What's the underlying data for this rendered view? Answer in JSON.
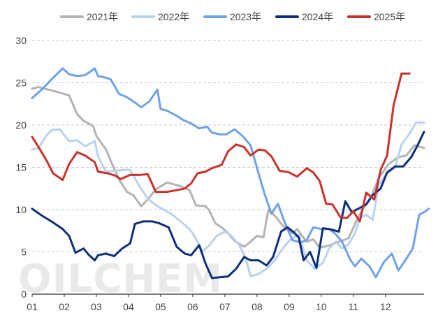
{
  "chart_data": {
    "type": "line",
    "watermark": "OILCHEM",
    "x_ticks": [
      "01",
      "02",
      "03",
      "04",
      "05",
      "06",
      "07",
      "08",
      "09",
      "10",
      "11",
      "12"
    ],
    "xlim": [
      1,
      13.2
    ],
    "ylim": [
      0,
      30
    ],
    "y_ticks": [
      "0",
      "5",
      "10",
      "15",
      "20",
      "25",
      "30"
    ],
    "grid": "horizontal dashed",
    "legend_position": "top",
    "series": [
      {
        "name": "2021年",
        "color": "#b3b3b3",
        "points": [
          [
            1.0,
            24.3
          ],
          [
            1.2,
            24.5
          ],
          [
            1.5,
            24.2
          ],
          [
            1.8,
            23.9
          ],
          [
            2.15,
            23.5
          ],
          [
            2.4,
            21.3
          ],
          [
            2.6,
            20.5
          ],
          [
            2.9,
            19.9
          ],
          [
            3.0,
            18.7
          ],
          [
            3.3,
            17.1
          ],
          [
            3.5,
            15.3
          ],
          [
            3.7,
            13.6
          ],
          [
            3.95,
            12.1
          ],
          [
            4.15,
            11.7
          ],
          [
            4.4,
            10.4
          ],
          [
            4.6,
            11.2
          ],
          [
            4.85,
            12.4
          ],
          [
            5.2,
            13.2
          ],
          [
            5.6,
            12.8
          ],
          [
            5.9,
            12.3
          ],
          [
            6.1,
            10.5
          ],
          [
            6.4,
            10.4
          ],
          [
            6.5,
            10.0
          ],
          [
            6.7,
            8.4
          ],
          [
            6.9,
            7.9
          ],
          [
            7.1,
            7.2
          ],
          [
            7.3,
            6.3
          ],
          [
            7.6,
            5.6
          ],
          [
            7.8,
            6.2
          ],
          [
            8.0,
            6.9
          ],
          [
            8.2,
            6.7
          ],
          [
            8.35,
            9.9
          ],
          [
            8.55,
            9.3
          ],
          [
            8.8,
            8.1
          ],
          [
            9.1,
            7.2
          ],
          [
            9.25,
            7.7
          ],
          [
            9.4,
            6.9
          ],
          [
            9.55,
            6.2
          ],
          [
            9.75,
            6.5
          ],
          [
            9.95,
            5.5
          ],
          [
            10.2,
            5.7
          ],
          [
            10.55,
            6.2
          ],
          [
            10.85,
            6.6
          ],
          [
            11.1,
            8.7
          ],
          [
            11.3,
            10.1
          ],
          [
            11.55,
            11.5
          ],
          [
            11.8,
            13.8
          ],
          [
            12.1,
            15.4
          ],
          [
            12.4,
            16.2
          ],
          [
            12.65,
            16.4
          ],
          [
            12.9,
            17.6
          ],
          [
            13.2,
            17.3
          ]
        ]
      },
      {
        "name": "2022年",
        "color": "#b8d2f2",
        "points": [
          [
            1.0,
            17.1
          ],
          [
            1.2,
            17.3
          ],
          [
            1.45,
            18.8
          ],
          [
            1.6,
            19.4
          ],
          [
            1.85,
            19.5
          ],
          [
            2.15,
            18.1
          ],
          [
            2.4,
            18.2
          ],
          [
            2.65,
            17.5
          ],
          [
            2.95,
            18.1
          ],
          [
            3.05,
            16.3
          ],
          [
            3.3,
            14.5
          ],
          [
            3.6,
            14.6
          ],
          [
            3.85,
            14.7
          ],
          [
            4.05,
            14.7
          ],
          [
            4.35,
            12.7
          ],
          [
            4.6,
            11.3
          ],
          [
            4.9,
            10.4
          ],
          [
            5.1,
            10.0
          ],
          [
            5.4,
            9.3
          ],
          [
            5.65,
            8.5
          ],
          [
            5.9,
            7.7
          ],
          [
            6.05,
            6.9
          ],
          [
            6.3,
            5.1
          ],
          [
            6.5,
            5.7
          ],
          [
            6.75,
            6.9
          ],
          [
            7.0,
            7.4
          ],
          [
            7.2,
            6.9
          ],
          [
            7.45,
            5.8
          ],
          [
            7.65,
            4.2
          ],
          [
            7.8,
            2.1
          ],
          [
            8.05,
            2.4
          ],
          [
            8.3,
            3.0
          ],
          [
            8.55,
            4.0
          ],
          [
            8.8,
            5.4
          ],
          [
            9.05,
            6.5
          ],
          [
            9.3,
            7.0
          ],
          [
            9.55,
            4.0
          ],
          [
            9.8,
            3.0
          ],
          [
            10.05,
            3.7
          ],
          [
            10.25,
            5.4
          ],
          [
            10.45,
            6.2
          ],
          [
            10.65,
            5.4
          ],
          [
            10.85,
            5.9
          ],
          [
            11.05,
            7.2
          ],
          [
            11.2,
            9.0
          ],
          [
            11.4,
            9.4
          ],
          [
            11.6,
            8.8
          ],
          [
            11.8,
            13.0
          ],
          [
            12.05,
            14.3
          ],
          [
            12.3,
            15.0
          ],
          [
            12.5,
            17.7
          ],
          [
            12.75,
            19.0
          ],
          [
            12.95,
            20.3
          ],
          [
            13.2,
            20.3
          ]
        ]
      },
      {
        "name": "2023年",
        "color": "#6fa2e6",
        "points": [
          [
            1.0,
            23.2
          ],
          [
            1.3,
            24.2
          ],
          [
            1.6,
            25.4
          ],
          [
            1.95,
            26.7
          ],
          [
            2.15,
            26.0
          ],
          [
            2.4,
            25.8
          ],
          [
            2.65,
            25.9
          ],
          [
            2.95,
            26.7
          ],
          [
            3.05,
            25.8
          ],
          [
            3.3,
            25.6
          ],
          [
            3.45,
            25.4
          ],
          [
            3.7,
            23.7
          ],
          [
            3.95,
            23.3
          ],
          [
            4.15,
            22.8
          ],
          [
            4.4,
            22.1
          ],
          [
            4.65,
            22.8
          ],
          [
            4.9,
            24.2
          ],
          [
            5.0,
            21.9
          ],
          [
            5.2,
            21.7
          ],
          [
            5.45,
            21.2
          ],
          [
            5.7,
            20.6
          ],
          [
            5.95,
            20.2
          ],
          [
            6.2,
            19.6
          ],
          [
            6.45,
            19.8
          ],
          [
            6.6,
            19.1
          ],
          [
            6.85,
            18.9
          ],
          [
            7.05,
            18.9
          ],
          [
            7.3,
            19.5
          ],
          [
            7.55,
            18.7
          ],
          [
            7.8,
            17.6
          ],
          [
            8.1,
            13.6
          ],
          [
            8.25,
            11.7
          ],
          [
            8.45,
            9.5
          ],
          [
            8.65,
            10.7
          ],
          [
            8.85,
            8.6
          ],
          [
            9.1,
            6.4
          ],
          [
            9.35,
            6.1
          ],
          [
            9.55,
            6.4
          ],
          [
            9.75,
            7.9
          ],
          [
            10.0,
            7.7
          ],
          [
            10.25,
            7.7
          ],
          [
            10.45,
            7.1
          ],
          [
            10.65,
            6.2
          ],
          [
            10.9,
            4.1
          ],
          [
            11.05,
            3.3
          ],
          [
            11.25,
            4.2
          ],
          [
            11.5,
            3.3
          ],
          [
            11.7,
            2.0
          ],
          [
            11.95,
            3.8
          ],
          [
            12.2,
            4.8
          ],
          [
            12.4,
            2.8
          ],
          [
            12.6,
            3.9
          ],
          [
            12.85,
            5.4
          ],
          [
            13.05,
            9.4
          ],
          [
            13.2,
            9.7
          ],
          [
            13.35,
            10.1
          ]
        ]
      },
      {
        "name": "2024年",
        "color": "#0d2f7a",
        "points": [
          [
            1.0,
            10.1
          ],
          [
            1.3,
            9.3
          ],
          [
            1.6,
            8.6
          ],
          [
            1.95,
            7.7
          ],
          [
            2.15,
            6.9
          ],
          [
            2.35,
            4.9
          ],
          [
            2.6,
            5.4
          ],
          [
            2.75,
            4.7
          ],
          [
            2.95,
            4.0
          ],
          [
            3.05,
            4.6
          ],
          [
            3.3,
            4.8
          ],
          [
            3.55,
            4.5
          ],
          [
            3.8,
            5.4
          ],
          [
            4.05,
            6.0
          ],
          [
            4.2,
            8.3
          ],
          [
            4.45,
            8.6
          ],
          [
            4.75,
            8.6
          ],
          [
            4.95,
            8.4
          ],
          [
            5.25,
            7.9
          ],
          [
            5.5,
            5.6
          ],
          [
            5.75,
            4.8
          ],
          [
            5.95,
            4.6
          ],
          [
            6.2,
            5.8
          ],
          [
            6.4,
            3.6
          ],
          [
            6.6,
            1.9
          ],
          [
            6.85,
            2.0
          ],
          [
            7.1,
            2.1
          ],
          [
            7.35,
            3.0
          ],
          [
            7.6,
            4.4
          ],
          [
            7.8,
            4.0
          ],
          [
            8.05,
            4.0
          ],
          [
            8.3,
            3.4
          ],
          [
            8.5,
            4.4
          ],
          [
            8.75,
            7.4
          ],
          [
            8.95,
            7.9
          ],
          [
            9.15,
            7.3
          ],
          [
            9.3,
            6.7
          ],
          [
            9.45,
            4.0
          ],
          [
            9.65,
            5.0
          ],
          [
            9.85,
            3.1
          ],
          [
            10.05,
            7.8
          ],
          [
            10.25,
            7.7
          ],
          [
            10.55,
            7.4
          ],
          [
            10.75,
            11.0
          ],
          [
            10.95,
            9.7
          ],
          [
            11.15,
            10.1
          ],
          [
            11.4,
            10.6
          ],
          [
            11.6,
            11.7
          ],
          [
            11.85,
            12.5
          ],
          [
            12.05,
            14.4
          ],
          [
            12.3,
            15.1
          ],
          [
            12.55,
            15.1
          ],
          [
            12.8,
            16.2
          ],
          [
            13.0,
            17.6
          ],
          [
            13.2,
            19.2
          ]
        ]
      },
      {
        "name": "2025年",
        "color": "#c9312c",
        "points": [
          [
            1.0,
            18.6
          ],
          [
            1.2,
            17.4
          ],
          [
            1.45,
            15.8
          ],
          [
            1.65,
            14.3
          ],
          [
            1.95,
            13.5
          ],
          [
            2.15,
            15.4
          ],
          [
            2.4,
            16.8
          ],
          [
            2.65,
            16.4
          ],
          [
            2.95,
            15.6
          ],
          [
            3.05,
            14.5
          ],
          [
            3.35,
            14.3
          ],
          [
            3.6,
            14.0
          ],
          [
            3.75,
            13.6
          ],
          [
            4.05,
            14.1
          ],
          [
            4.35,
            14.1
          ],
          [
            4.6,
            14.2
          ],
          [
            4.85,
            12.1
          ],
          [
            5.2,
            12.1
          ],
          [
            5.5,
            12.3
          ],
          [
            5.75,
            12.5
          ],
          [
            5.95,
            13.1
          ],
          [
            6.15,
            14.3
          ],
          [
            6.4,
            14.5
          ],
          [
            6.6,
            14.9
          ],
          [
            6.9,
            15.3
          ],
          [
            7.1,
            16.9
          ],
          [
            7.35,
            17.7
          ],
          [
            7.6,
            17.4
          ],
          [
            7.8,
            16.4
          ],
          [
            8.05,
            17.1
          ],
          [
            8.25,
            17.0
          ],
          [
            8.45,
            16.3
          ],
          [
            8.7,
            14.6
          ],
          [
            9.0,
            14.4
          ],
          [
            9.25,
            13.9
          ],
          [
            9.55,
            14.9
          ],
          [
            9.75,
            14.4
          ],
          [
            9.95,
            13.4
          ],
          [
            10.15,
            10.7
          ],
          [
            10.35,
            10.6
          ],
          [
            10.6,
            9.1
          ],
          [
            10.8,
            9.0
          ],
          [
            11.0,
            9.8
          ],
          [
            11.2,
            8.6
          ],
          [
            11.4,
            12.0
          ],
          [
            11.65,
            11.2
          ],
          [
            11.85,
            14.7
          ],
          [
            12.05,
            16.4
          ],
          [
            12.25,
            22.3
          ],
          [
            12.5,
            26.1
          ],
          [
            12.75,
            26.1
          ]
        ]
      }
    ]
  }
}
